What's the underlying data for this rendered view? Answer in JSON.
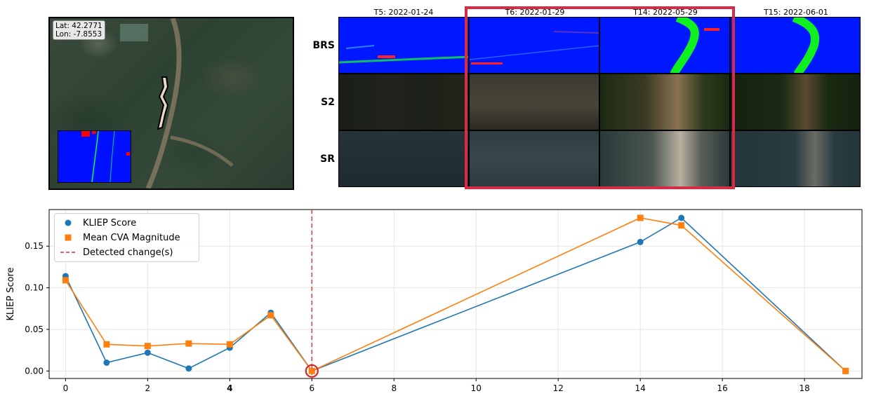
{
  "map": {
    "lat_text": "Lat: 42.2771",
    "lon_text": "Lon: -7.8553"
  },
  "thumbnails": {
    "columns": [
      "T5: 2022-01-24",
      "T6: 2022-01-29",
      "T14: 2022-05-29",
      "T15: 2022-06-01"
    ],
    "rows": [
      "BRS",
      "S2",
      "SR"
    ],
    "highlight_color": "#d62c45"
  },
  "chart_data": {
    "type": "line",
    "x_ticks": [
      0,
      2,
      4,
      6,
      8,
      10,
      12,
      14,
      16,
      18
    ],
    "x_tick_labels": [
      "0",
      "2",
      "4",
      "6",
      "8",
      "10",
      "12",
      "14",
      "16",
      "18"
    ],
    "highlighted_x_tick": 4,
    "highlighted_x_tick_color": "#d62c45",
    "y_ticks": [
      0.0,
      0.05,
      0.1,
      0.15
    ],
    "y_tick_labels": [
      "0.00",
      "0.05",
      "0.10",
      "0.15"
    ],
    "xlim": [
      -0.4,
      19.4
    ],
    "ylim": [
      -0.009,
      0.194
    ],
    "ylabel": "KLIEP Score",
    "xlabel": "",
    "grid": true,
    "legend_position": "top-left",
    "x": [
      0,
      1,
      2,
      3,
      4,
      5,
      6,
      14,
      15,
      19
    ],
    "series": [
      {
        "name": "KLIEP Score",
        "marker": "circle",
        "color": "#1f77b4",
        "values": [
          0.114,
          0.01,
          0.022,
          0.003,
          0.028,
          0.07,
          0.0,
          0.155,
          0.184,
          0.0
        ]
      },
      {
        "name": "Mean CVA Magnitude",
        "marker": "square",
        "color": "#ff7f0e",
        "values": [
          0.109,
          0.032,
          0.03,
          0.033,
          0.032,
          0.067,
          0.0,
          0.184,
          0.175,
          0.0
        ]
      }
    ],
    "detected_changes": {
      "name": "Detected change(s)",
      "x": [
        6
      ],
      "color": "#d62728",
      "circled_point": [
        6,
        0.0
      ]
    }
  }
}
